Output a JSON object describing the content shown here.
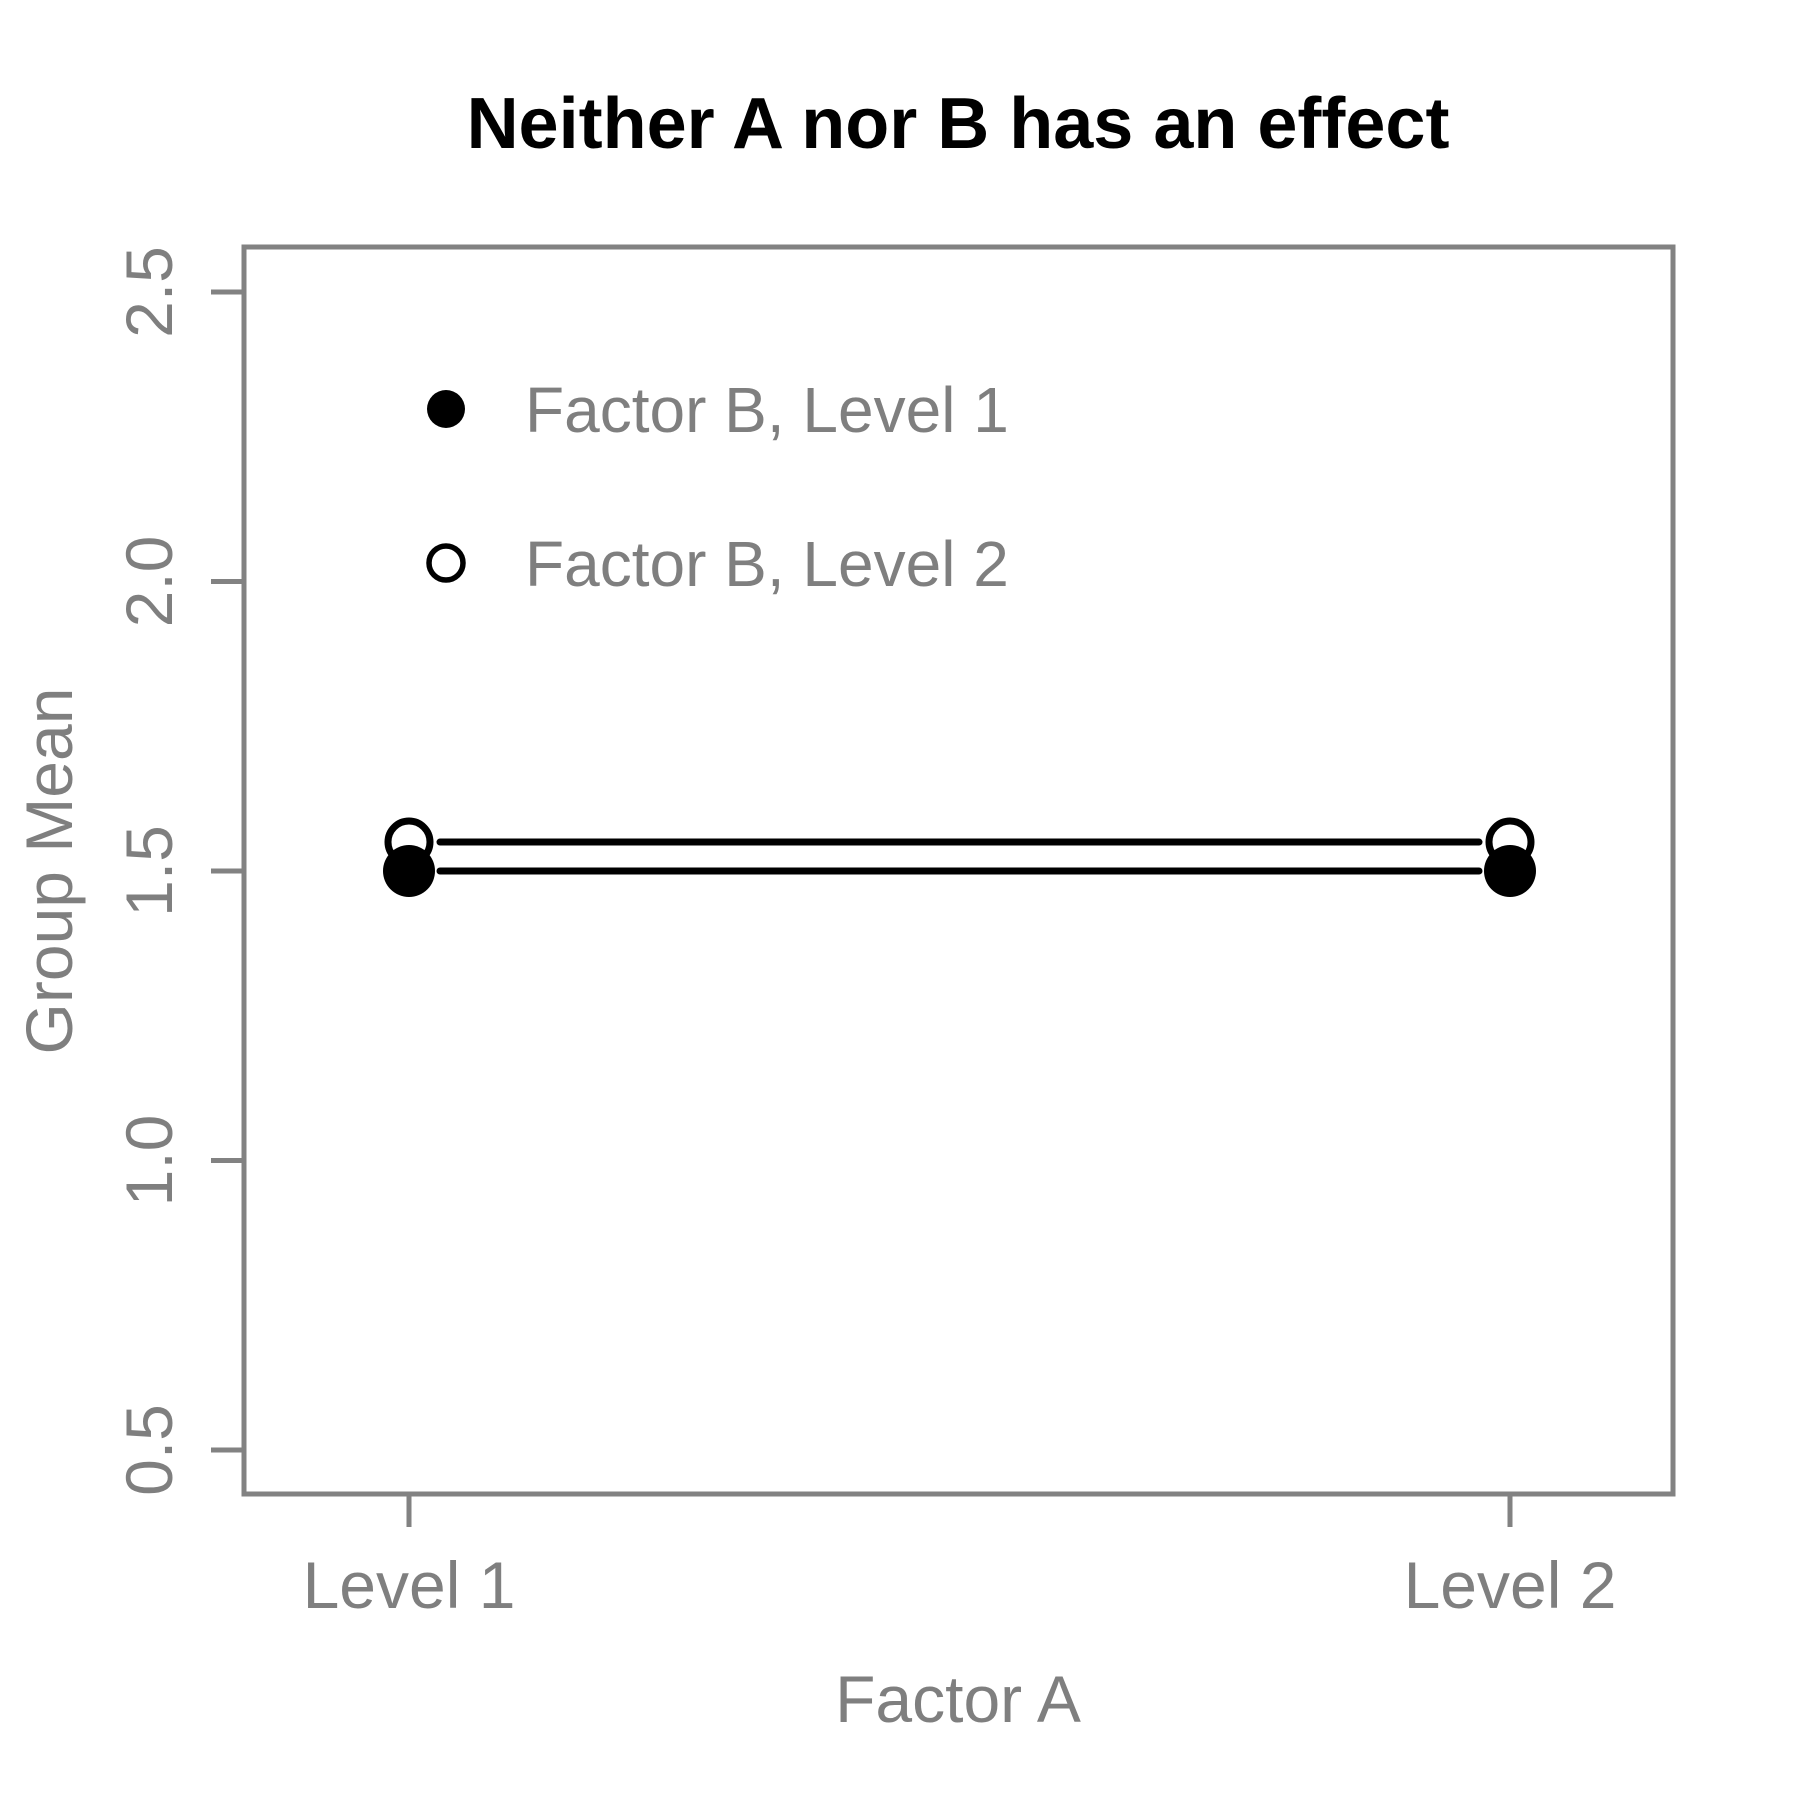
{
  "figure": {
    "background": "#ffffff"
  },
  "chart_data": {
    "type": "line",
    "title": "Neither A nor B has an effect",
    "xlabel": "Factor A",
    "ylabel": "Group Mean",
    "categories": [
      "Level 1",
      "Level 2"
    ],
    "series": [
      {
        "name": "Factor B, Level 1",
        "marker": "filled-circle",
        "values": [
          1.5,
          1.5
        ]
      },
      {
        "name": "Factor B, Level 2",
        "marker": "open-circle",
        "values": [
          1.55,
          1.55
        ]
      }
    ],
    "ylim": [
      0.4,
      2.6
    ],
    "yticks": [
      0.5,
      1.0,
      1.5,
      2.0,
      2.5
    ],
    "ytick_decimals": 1,
    "grid": false,
    "legend_position": "top-left-inside",
    "legend_entries": [
      "Factor B, Level 1",
      "Factor B, Level 2"
    ]
  },
  "colors": {
    "data": "#000000",
    "axis": "#828282",
    "label_gray": "#7f7f7f",
    "title": "#000000",
    "marker_open_fill": "#ffffff",
    "background": "#ffffff"
  }
}
